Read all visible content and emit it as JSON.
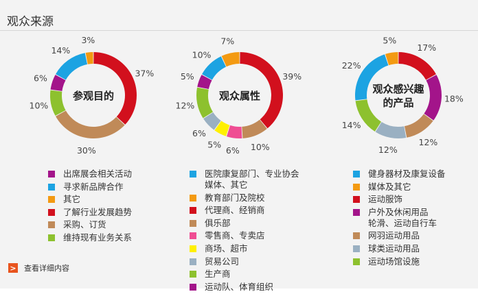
{
  "page": {
    "title": "观众来源"
  },
  "colors": {
    "purple": "#a3148a",
    "blue": "#1ca3e2",
    "orange": "#f39a12",
    "red": "#d2101d",
    "brown": "#c08a58",
    "green": "#8dc12e",
    "pink": "#ef4d93",
    "yellow": "#fff000",
    "grey_blue": "#9ab0c2"
  },
  "chart_data": [
    {
      "type": "pie",
      "variant": "donut",
      "title": "参观目的",
      "slices": [
        {
          "label": "了解行业发展趋势",
          "value": 37,
          "value_label": "37%",
          "color": "#d2101d"
        },
        {
          "label": "采购、订货",
          "value": 30,
          "value_label": "30%",
          "color": "#c08a58"
        },
        {
          "label": "维持现有业务关系",
          "value": 10,
          "value_label": "10%",
          "color": "#8dc12e"
        },
        {
          "label": "出席展会相关活动",
          "value": 6,
          "value_label": "6%",
          "color": "#a3148a"
        },
        {
          "label": "寻求新品牌合作",
          "value": 14,
          "value_label": "14%",
          "color": "#1ca3e2"
        },
        {
          "label": "其它",
          "value": 3,
          "value_label": "3%",
          "color": "#f39a12"
        }
      ],
      "legend": [
        {
          "label": "出席展会相关活动",
          "color": "#a3148a"
        },
        {
          "label": "寻求新品牌合作",
          "color": "#1ca3e2"
        },
        {
          "label": "其它",
          "color": "#f39a12"
        },
        {
          "label": "了解行业发展趋势",
          "color": "#d2101d"
        },
        {
          "label": "采购、订货",
          "color": "#c08a58"
        },
        {
          "label": "维持现有业务关系",
          "color": "#8dc12e"
        }
      ]
    },
    {
      "type": "pie",
      "variant": "donut",
      "title": "观众属性",
      "slices": [
        {
          "label": "代理商、经销商",
          "value": 39,
          "value_label": "39%",
          "color": "#d2101d"
        },
        {
          "label": "俱乐部",
          "value": 10,
          "value_label": "10%",
          "color": "#c08a58"
        },
        {
          "label": "零售商、专卖店",
          "value": 6,
          "value_label": "6%",
          "color": "#ef4d93"
        },
        {
          "label": "商场、超市",
          "value": 5,
          "value_label": "5%",
          "color": "#fff000"
        },
        {
          "label": "贸易公司",
          "value": 6,
          "value_label": "6%",
          "color": "#9ab0c2"
        },
        {
          "label": "生产商",
          "value": 12,
          "value_label": "12%",
          "color": "#8dc12e"
        },
        {
          "label": "运动队、体育组织",
          "value": 5,
          "value_label": "5%",
          "color": "#a3148a"
        },
        {
          "label": "医院康复部门、专业协会\n媒体、其它",
          "value": 10,
          "value_label": "10%",
          "color": "#1ca3e2"
        },
        {
          "label": "教育部门及院校",
          "value": 7,
          "value_label": "7%",
          "color": "#f39a12"
        }
      ],
      "legend": [
        {
          "label": "医院康复部门、专业协会\n媒体、其它",
          "color": "#1ca3e2"
        },
        {
          "label": "教育部门及院校",
          "color": "#f39a12"
        },
        {
          "label": "代理商、经销商",
          "color": "#d2101d"
        },
        {
          "label": "俱乐部",
          "color": "#c08a58"
        },
        {
          "label": "零售商、专卖店",
          "color": "#ef4d93"
        },
        {
          "label": "商场、超市",
          "color": "#fff000"
        },
        {
          "label": "贸易公司",
          "color": "#9ab0c2"
        },
        {
          "label": "生产商",
          "color": "#8dc12e"
        },
        {
          "label": "运动队、体育组织",
          "color": "#a3148a"
        }
      ]
    },
    {
      "type": "pie",
      "variant": "donut",
      "title": "观众感兴趣\n的产品",
      "slices": [
        {
          "label": "运动服饰",
          "value": 17,
          "value_label": "17%",
          "color": "#d2101d"
        },
        {
          "label": "户外及休闲用品\n轮滑、运动自行车",
          "value": 18,
          "value_label": "18%",
          "color": "#a3148a"
        },
        {
          "label": "网羽运动用品",
          "value": 12,
          "value_label": "12%",
          "color": "#c08a58"
        },
        {
          "label": "球类运动用品",
          "value": 12,
          "value_label": "12%",
          "color": "#9ab0c2"
        },
        {
          "label": "运动场馆设施",
          "value": 14,
          "value_label": "14%",
          "color": "#8dc12e"
        },
        {
          "label": "健身器材及康复设备",
          "value": 22,
          "value_label": "22%",
          "color": "#1ca3e2"
        },
        {
          "label": "媒体及其它",
          "value": 5,
          "value_label": "5%",
          "color": "#f39a12"
        }
      ],
      "legend": [
        {
          "label": "健身器材及康复设备",
          "color": "#1ca3e2"
        },
        {
          "label": "媒体及其它",
          "color": "#f39a12"
        },
        {
          "label": "运动服饰",
          "color": "#d2101d"
        },
        {
          "label": "户外及休闲用品\n轮滑、运动自行车",
          "color": "#a3148a"
        },
        {
          "label": "网羽运动用品",
          "color": "#c08a58"
        },
        {
          "label": "球类运动用品",
          "color": "#9ab0c2"
        },
        {
          "label": "运动场馆设施",
          "color": "#8dc12e"
        }
      ]
    }
  ],
  "footer": {
    "detail_link": "查看详细内容",
    "detail_icon": "chevron-right-icon"
  }
}
